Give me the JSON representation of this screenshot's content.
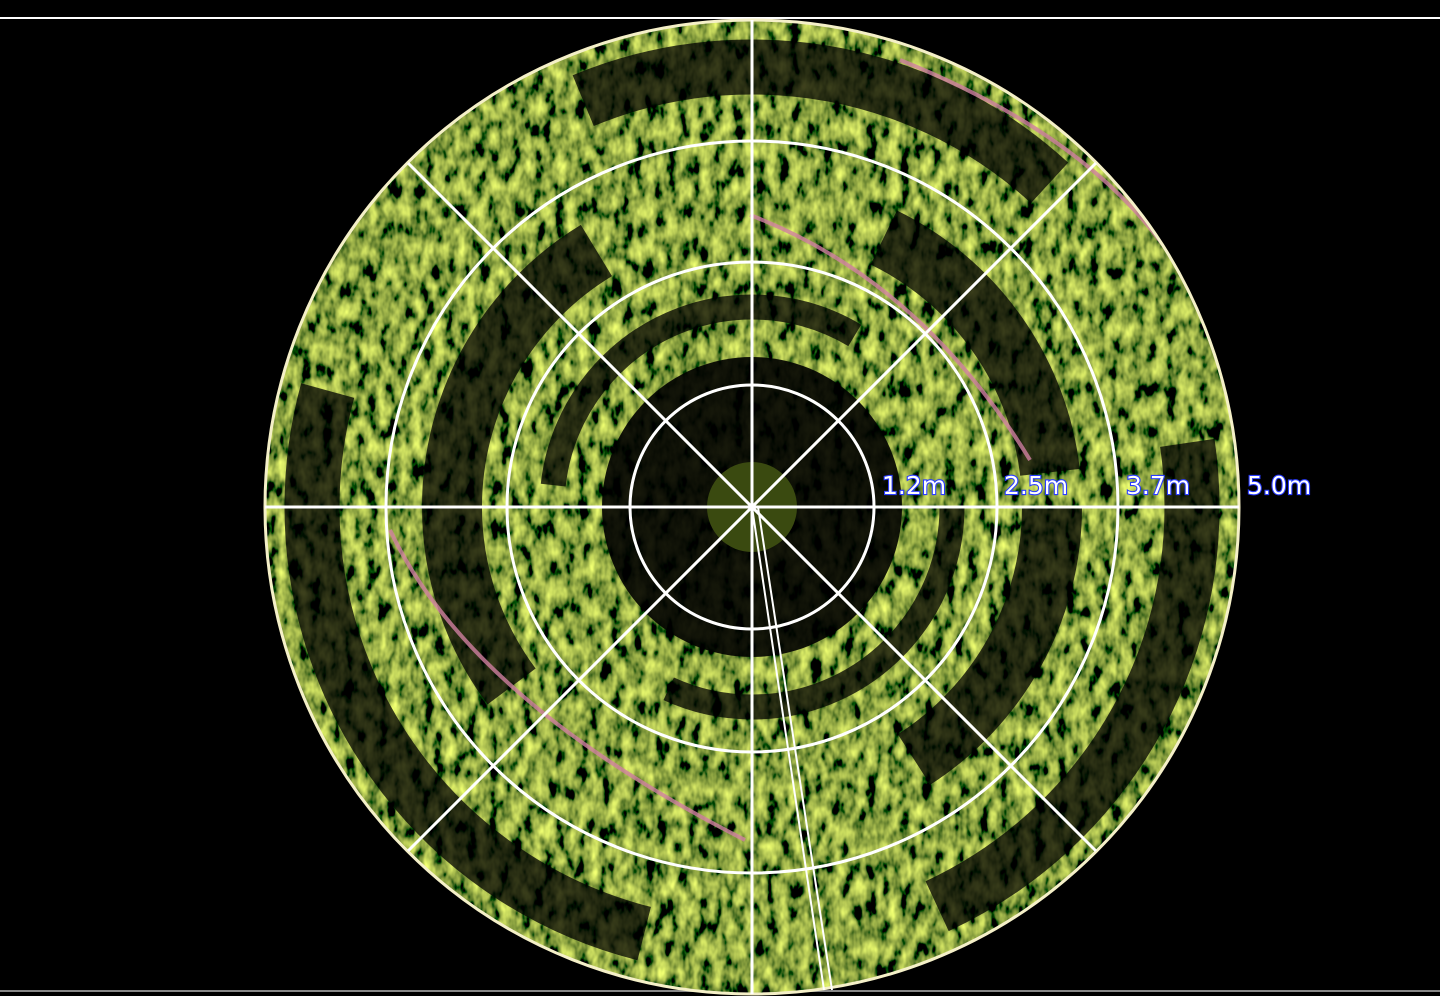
{
  "range_labels": [
    "1.2m",
    "2.5m",
    "3.7m",
    "5.0m"
  ]
}
